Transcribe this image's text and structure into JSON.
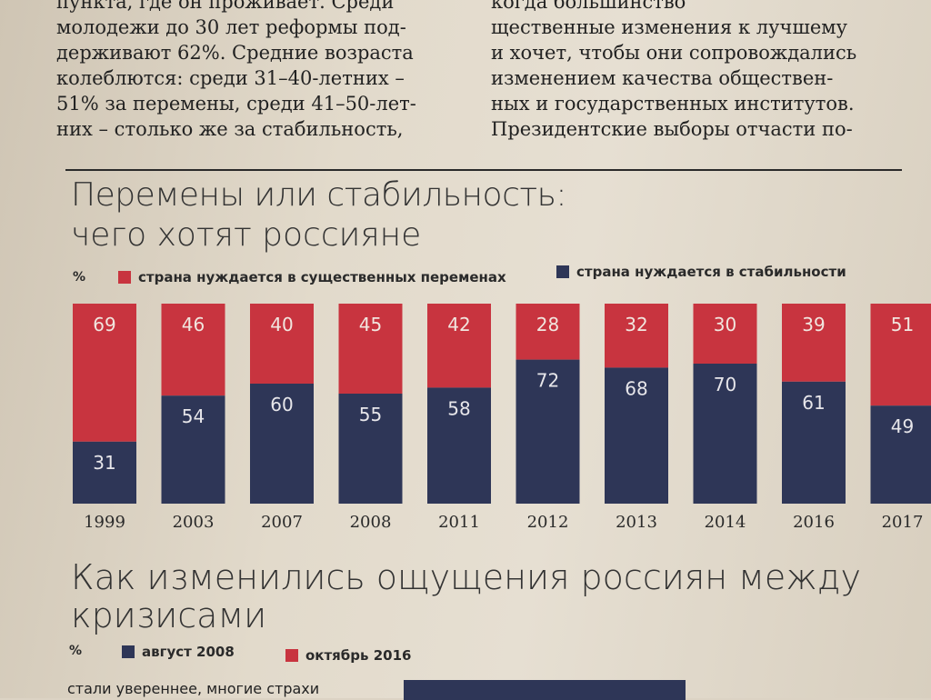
{
  "article": {
    "left_lines": [
      "пункта, где он проживает. Среди",
      "молодежи до 30 лет реформы под-",
      "держивают 62%. Средние возраста",
      "колеблются: среди 31–40-летних –",
      "51% за перемены, среди 41–50-лет-",
      "них – столько же за стабильность,"
    ],
    "right_lines": [
      "когда большинство",
      "щественные изменения к лучшему",
      "и хочет, чтобы они сопровождались",
      "изменением качества обществен-",
      "ных и государственных институтов.",
      "Президентские выборы отчасти по-"
    ]
  },
  "chart_data": [
    {
      "type": "bar",
      "stacked": true,
      "title": "Перемены или стабильность:",
      "subtitle": "чего хотят россияне",
      "unit_label": "%",
      "categories": [
        "1999",
        "2003",
        "2007",
        "2008",
        "2011",
        "2012",
        "2013",
        "2014",
        "2016",
        "2017"
      ],
      "series": [
        {
          "name": "страна нуждается в существенных переменах",
          "color": "#c8343f",
          "values": [
            69,
            46,
            40,
            45,
            42,
            28,
            32,
            30,
            39,
            51
          ]
        },
        {
          "name": "страна нуждается в стабильности",
          "color": "#2e3657",
          "values": [
            31,
            54,
            60,
            55,
            58,
            72,
            68,
            70,
            61,
            49
          ]
        }
      ],
      "ylim": [
        0,
        100
      ],
      "legend_position": "top"
    },
    {
      "type": "bar",
      "title": "Как изменились ощущения россиян между",
      "subtitle": "кризисами",
      "unit_label": "%",
      "series": [
        {
          "name": "август 2008",
          "color": "#2e3657"
        },
        {
          "name": "октябрь 2016",
          "color": "#c8343f"
        }
      ],
      "categories": [
        "стали увереннее, многие страхи"
      ]
    }
  ]
}
